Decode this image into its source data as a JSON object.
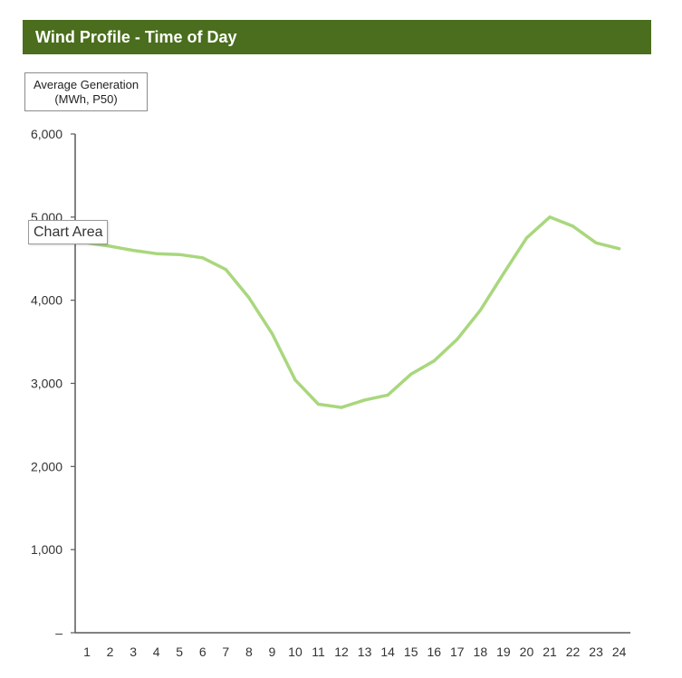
{
  "header": {
    "title": "Wind Profile - Time of Day"
  },
  "tooltip": {
    "text": "Chart Area"
  },
  "colors": {
    "header_bg": "#4a6e1d",
    "line": "#a9d77d",
    "axis": "#595959"
  },
  "chart_data": {
    "type": "line",
    "title": "Wind Profile - Time of Day",
    "ylabel_lines": [
      "Average Generation",
      "(MWh, P50)"
    ],
    "xlabel": "",
    "categories": [
      "1",
      "2",
      "3",
      "4",
      "5",
      "6",
      "7",
      "8",
      "9",
      "10",
      "11",
      "12",
      "13",
      "14",
      "15",
      "16",
      "17",
      "18",
      "19",
      "20",
      "21",
      "22",
      "23",
      "24"
    ],
    "series": [
      {
        "values": [
          4690,
          4650,
          4600,
          4560,
          4550,
          4510,
          4370,
          4030,
          3600,
          3040,
          2750,
          2710,
          2800,
          2860,
          3110,
          3270,
          3530,
          3880,
          4320,
          4750,
          5000,
          4890,
          4690,
          4620
        ]
      }
    ],
    "ylim": [
      0,
      6000
    ],
    "yticks": [
      0,
      1000,
      2000,
      3000,
      4000,
      5000,
      6000
    ],
    "ytick_labels": [
      "–",
      "1,000",
      "2,000",
      "3,000",
      "4,000",
      "5,000",
      "6,000"
    ],
    "grid": false,
    "legend": "none"
  }
}
